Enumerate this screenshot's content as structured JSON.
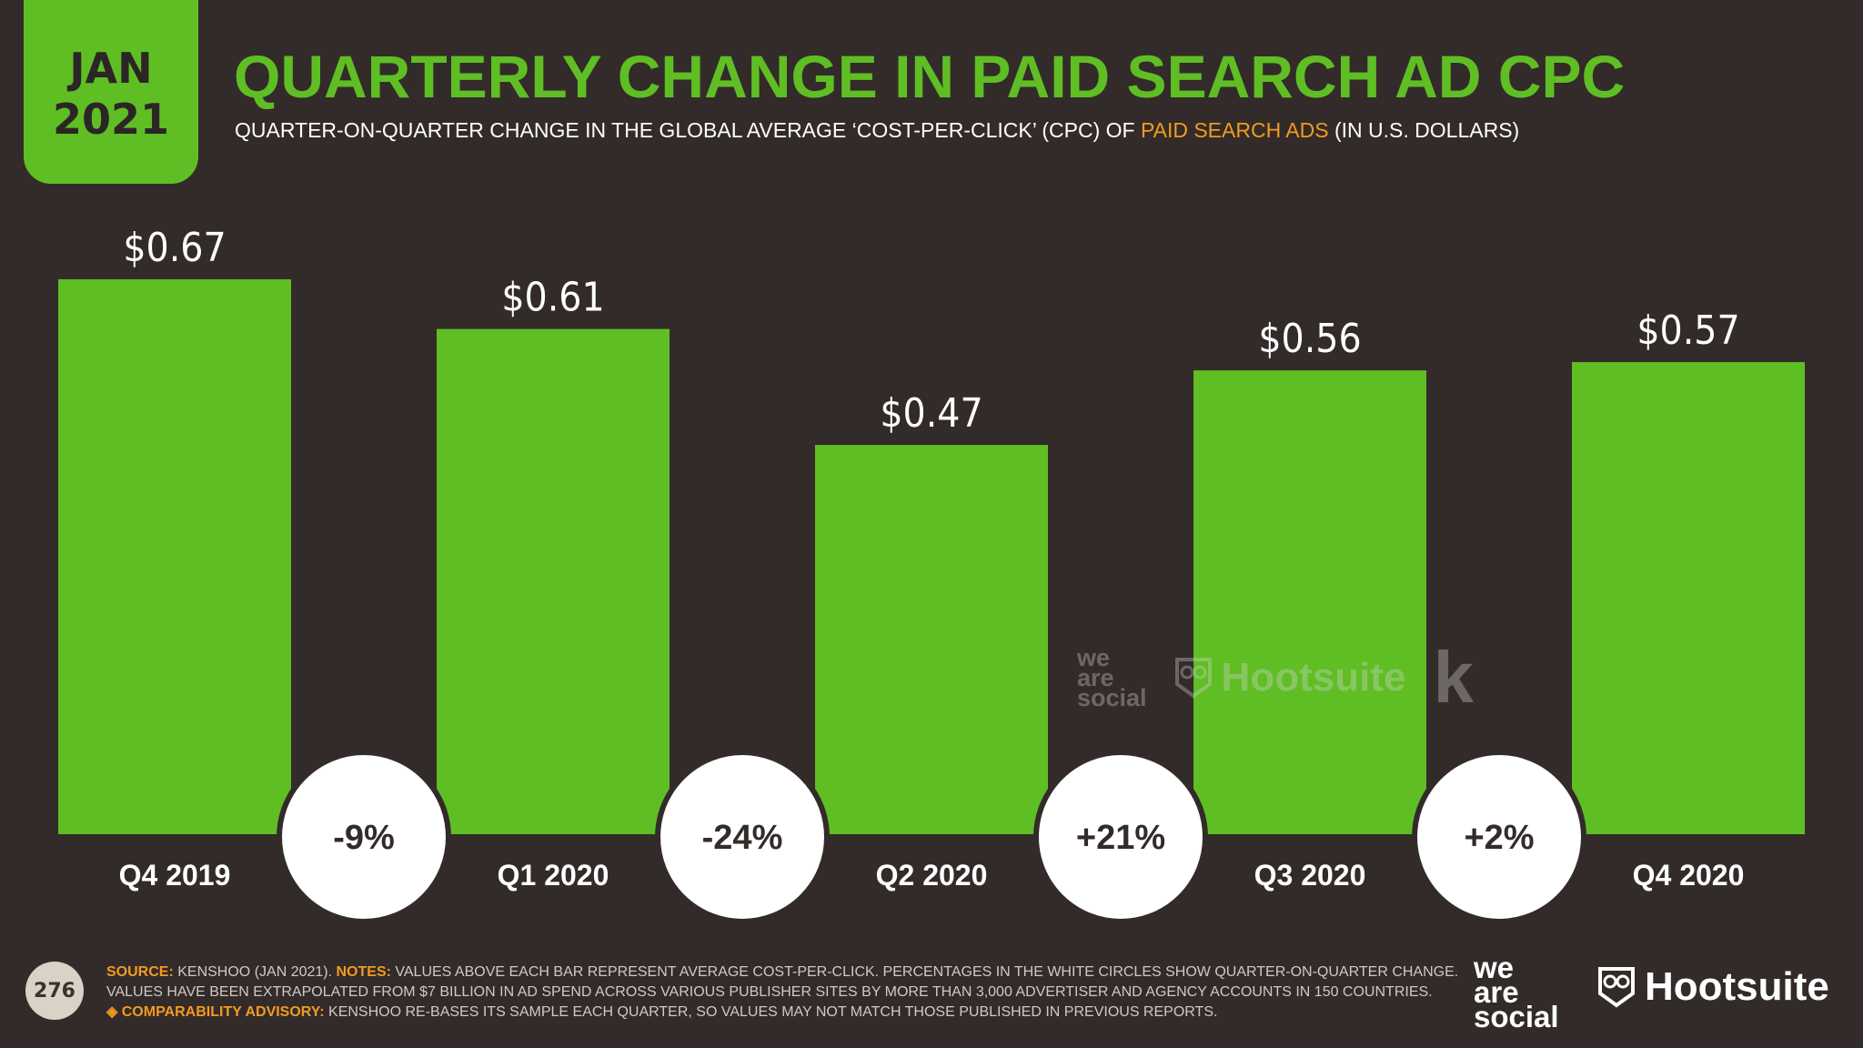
{
  "badge": {
    "month": "JAN",
    "year": "2021"
  },
  "title": "QUARTERLY CHANGE IN PAID SEARCH AD CPC",
  "subtitle": {
    "before": "QUARTER-ON-QUARTER CHANGE IN THE GLOBAL AVERAGE ‘COST-PER-CLICK’ (CPC) OF ",
    "highlight": "PAID SEARCH ADS",
    "after": " (IN U.S. DOLLARS)"
  },
  "colors": {
    "bar": "#5fbe24",
    "background": "#332b2a",
    "accent": "#f29b1f"
  },
  "chart_data": {
    "type": "bar",
    "categories": [
      "Q4 2019",
      "Q1 2020",
      "Q2 2020",
      "Q3 2020",
      "Q4 2020"
    ],
    "values": [
      0.67,
      0.61,
      0.47,
      0.56,
      0.57
    ],
    "value_labels": [
      "$0.67",
      "$0.61",
      "$0.47",
      "$0.56",
      "$0.57"
    ],
    "changes": [
      "-9%",
      "-24%",
      "+21%",
      "+2%"
    ],
    "ylim": [
      0,
      0.67
    ],
    "grid": false,
    "legend": "none"
  },
  "watermark": {
    "we_are_social": [
      "we",
      "are",
      "social"
    ],
    "hootsuite": "Hootsuite",
    "kenshoo": "k"
  },
  "footer": {
    "page_number": "276",
    "source_label": "SOURCE:",
    "source_text": " KENSHOO (JAN 2021). ",
    "notes_label": "NOTES:",
    "notes_text": " VALUES ABOVE EACH BAR REPRESENT AVERAGE COST-PER-CLICK. PERCENTAGES IN THE WHITE CIRCLES SHOW QUARTER-ON-QUARTER CHANGE.",
    "notes_line2": "VALUES HAVE BEEN EXTRAPOLATED FROM $7 BILLION IN AD SPEND ACROSS VARIOUS PUBLISHER SITES BY MORE THAN 3,000 ADVERTISER AND AGENCY ACCOUNTS IN 150 COUNTRIES.",
    "advisory_label": "◈ COMPARABILITY ADVISORY:",
    "advisory_text": " KENSHOO RE-BASES ITS SAMPLE EACH QUARTER, SO VALUES MAY NOT MATCH THOSE PUBLISHED IN PREVIOUS REPORTS."
  },
  "logos": {
    "we_are_social": [
      "we",
      "are",
      "social"
    ],
    "hootsuite": "Hootsuite"
  }
}
